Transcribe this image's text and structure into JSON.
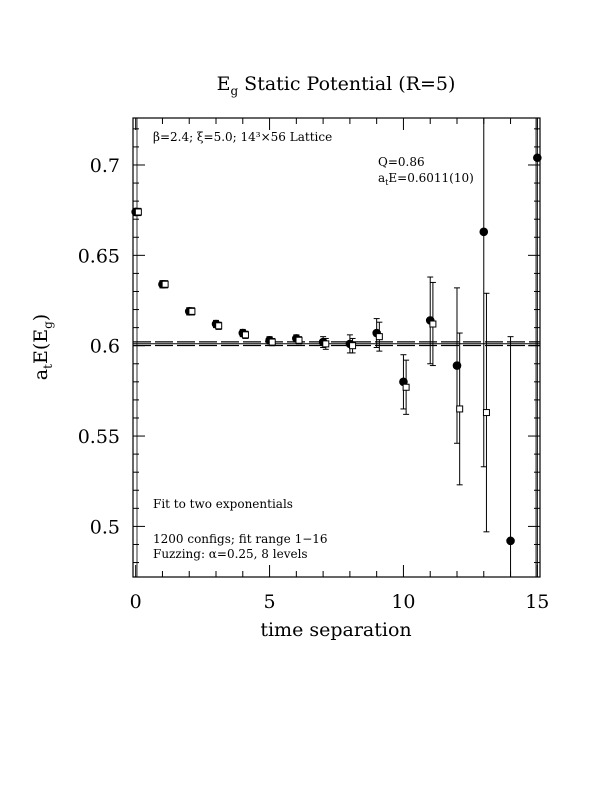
{
  "chart_data": {
    "type": "scatter",
    "title": "E",
    "title_sub": "g",
    "title_rest": " Static Potential (R=5)",
    "xlabel": "time separation",
    "ylabel_parts": [
      "a",
      "t",
      "E(E",
      "g",
      ")"
    ],
    "xlim": [
      -0.1,
      15.1
    ],
    "ylim": [
      0.472,
      0.726
    ],
    "x_ticks": [
      0,
      5,
      10,
      15
    ],
    "y_ticks": [
      0.5,
      0.55,
      0.6,
      0.65,
      0.7
    ],
    "x_tick_labels": [
      "0",
      "5",
      "10",
      "15"
    ],
    "y_tick_labels": [
      "0.5",
      "0.55",
      "0.6",
      "0.65",
      "0.7"
    ],
    "annotations": {
      "lattice": "β=2.4; ξ=5.0; 14³×56 Lattice",
      "q": "Q=0.86",
      "energy_a": "a",
      "energy_sub": "t",
      "energy_rest": "E=0.6011(10)",
      "fit": "Fit to two exponentials",
      "configs": "1200 configs; fit range 1−16",
      "fuzzing": "Fuzzing: α=0.25, 8 levels"
    },
    "fit": {
      "value": 0.6011,
      "error": 0.001,
      "x_range": [
        -0.1,
        15.1
      ]
    },
    "series": [
      {
        "marker": "filled-circle",
        "points": [
          {
            "x": 0,
            "y": 0.674,
            "err": 0.002
          },
          {
            "x": 1,
            "y": 0.634,
            "err": 0.002
          },
          {
            "x": 2,
            "y": 0.619,
            "err": 0.002
          },
          {
            "x": 3,
            "y": 0.612,
            "err": 0.002
          },
          {
            "x": 4,
            "y": 0.607,
            "err": 0.002
          },
          {
            "x": 5,
            "y": 0.603,
            "err": 0.002
          },
          {
            "x": 6,
            "y": 0.604,
            "err": 0.002
          },
          {
            "x": 7,
            "y": 0.602,
            "err": 0.003
          },
          {
            "x": 8,
            "y": 0.601,
            "err": 0.005
          },
          {
            "x": 9,
            "y": 0.607,
            "err": 0.008
          },
          {
            "x": 10,
            "y": 0.58,
            "err": 0.015
          },
          {
            "x": 11,
            "y": 0.614,
            "err": 0.024
          },
          {
            "x": 12,
            "y": 0.589,
            "err": 0.043
          },
          {
            "x": 13,
            "y": 0.663,
            "err": 0.13
          },
          {
            "x": 14,
            "y": 0.492,
            "err": 0.113
          },
          {
            "x": 15,
            "y": 0.704,
            "err": 0.3
          }
        ]
      },
      {
        "marker": "open-square",
        "points": [
          {
            "x": 0.1,
            "y": 0.674,
            "err": 0.002
          },
          {
            "x": 1.1,
            "y": 0.634,
            "err": 0.002
          },
          {
            "x": 2.1,
            "y": 0.619,
            "err": 0.002
          },
          {
            "x": 3.1,
            "y": 0.611,
            "err": 0.002
          },
          {
            "x": 4.1,
            "y": 0.606,
            "err": 0.002
          },
          {
            "x": 5.1,
            "y": 0.602,
            "err": 0.002
          },
          {
            "x": 6.1,
            "y": 0.603,
            "err": 0.002
          },
          {
            "x": 7.1,
            "y": 0.601,
            "err": 0.003
          },
          {
            "x": 8.1,
            "y": 0.6,
            "err": 0.004
          },
          {
            "x": 9.1,
            "y": 0.605,
            "err": 0.008
          },
          {
            "x": 10.1,
            "y": 0.577,
            "err": 0.015
          },
          {
            "x": 11.1,
            "y": 0.612,
            "err": 0.023
          },
          {
            "x": 12.1,
            "y": 0.565,
            "err": 0.042
          },
          {
            "x": 13.1,
            "y": 0.563,
            "err": 0.066
          }
        ]
      }
    ]
  }
}
